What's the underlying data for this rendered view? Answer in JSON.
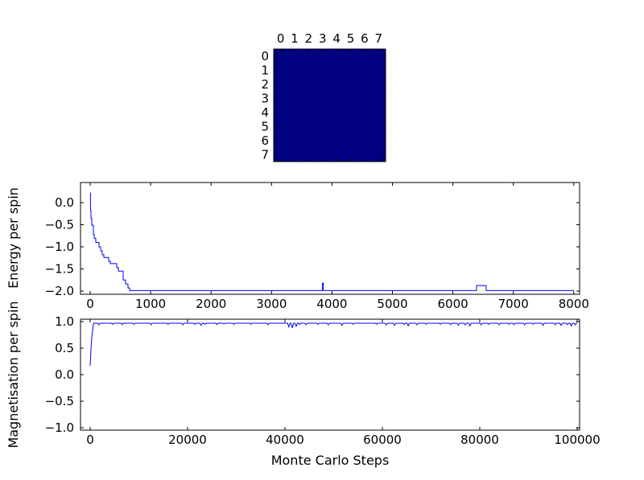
{
  "figure": {
    "background": "#ffffff",
    "description": "Ising model Monte Carlo simulation figure: 8x8 spin lattice heatmap, energy per spin vs steps, magnetisation per spin vs steps"
  },
  "colors": {
    "series_line": "#0000ff",
    "lattice_cell": "#000080",
    "axis": "#000000",
    "text": "#000000"
  },
  "chart_data": [
    {
      "type": "heatmap",
      "name": "spin-lattice",
      "x_tick_labels": [
        "0",
        "1",
        "2",
        "3",
        "4",
        "5",
        "6",
        "7"
      ],
      "y_tick_labels": [
        "0",
        "1",
        "2",
        "3",
        "4",
        "5",
        "6",
        "7"
      ],
      "cell_color": "#000080",
      "values": [
        [
          1,
          1,
          1,
          1,
          1,
          1,
          1,
          1
        ],
        [
          1,
          1,
          1,
          1,
          1,
          1,
          1,
          1
        ],
        [
          1,
          1,
          1,
          1,
          1,
          1,
          1,
          1
        ],
        [
          1,
          1,
          1,
          1,
          1,
          1,
          1,
          1
        ],
        [
          1,
          1,
          1,
          1,
          1,
          1,
          1,
          1
        ],
        [
          1,
          1,
          1,
          1,
          1,
          1,
          1,
          1
        ],
        [
          1,
          1,
          1,
          1,
          1,
          1,
          1,
          1
        ],
        [
          1,
          1,
          1,
          1,
          1,
          1,
          1,
          1
        ]
      ]
    },
    {
      "type": "line",
      "name": "energy-per-spin",
      "title": "",
      "xlabel": "",
      "ylabel": "Energy per spin",
      "x_ticks": [
        0,
        1000,
        2000,
        3000,
        4000,
        5000,
        6000,
        7000,
        8000
      ],
      "x_tick_labels": [
        "0",
        "1000",
        "2000",
        "3000",
        "4000",
        "5000",
        "6000",
        "7000",
        "8000"
      ],
      "y_ticks": [
        0.0,
        -0.5,
        -1.0,
        -1.5,
        -2.0
      ],
      "y_tick_labels": [
        "0.0",
        "−0.5",
        "−1.0",
        "−1.5",
        "−2.0"
      ],
      "xlim": [
        -160,
        8096
      ],
      "ylim": [
        -2.073,
        0.455
      ],
      "grid": false,
      "line_color": "#0000ff",
      "draw_style": "steps-post",
      "step_points": [
        [
          0,
          0.22
        ],
        [
          5,
          -0.18
        ],
        [
          13,
          -0.36
        ],
        [
          26,
          -0.51
        ],
        [
          53,
          -0.72
        ],
        [
          66,
          -0.81
        ],
        [
          93,
          -0.9
        ],
        [
          146,
          -1.0
        ],
        [
          173,
          -1.09
        ],
        [
          200,
          -1.18
        ],
        [
          226,
          -1.24
        ],
        [
          306,
          -1.33
        ],
        [
          333,
          -1.38
        ],
        [
          439,
          -1.47
        ],
        [
          466,
          -1.55
        ],
        [
          546,
          -1.75
        ],
        [
          586,
          -1.84
        ],
        [
          625,
          -1.93
        ],
        [
          652,
          -1.99
        ],
        [
          3840,
          -1.82
        ],
        [
          3858,
          -1.99
        ],
        [
          6390,
          -1.875
        ],
        [
          6550,
          -1.99
        ],
        [
          8000,
          -1.99
        ]
      ]
    },
    {
      "type": "line",
      "name": "magnetisation-per-spin",
      "title": "",
      "xlabel": "Monte Carlo Steps",
      "ylabel": "Magnetisation per spin",
      "x_ticks": [
        0,
        20000,
        40000,
        60000,
        80000,
        100000
      ],
      "x_tick_labels": [
        "0",
        "20000",
        "40000",
        "60000",
        "80000",
        "100000"
      ],
      "y_ticks": [
        1.0,
        0.5,
        0.0,
        -0.5,
        -1.0
      ],
      "y_tick_labels": [
        "1.0",
        "0.5",
        "0.0",
        "−0.5",
        "−1.0"
      ],
      "xlim": [
        -1983,
        100496
      ],
      "ylim": [
        -1.045,
        1.045
      ],
      "grid": false,
      "line_color": "#0000ff",
      "baseline": 0.97,
      "rise_points": [
        [
          0,
          0.17
        ],
        [
          150,
          0.45
        ],
        [
          350,
          0.72
        ],
        [
          700,
          0.97
        ]
      ],
      "dips": [
        [
          1800,
          0.94
        ],
        [
          4600,
          0.95
        ],
        [
          6600,
          0.945
        ],
        [
          9000,
          0.95
        ],
        [
          12500,
          0.94
        ],
        [
          16000,
          0.95
        ],
        [
          19000,
          0.94
        ],
        [
          21500,
          0.95
        ],
        [
          22800,
          0.93
        ],
        [
          23600,
          0.95
        ],
        [
          26000,
          0.945
        ],
        [
          27500,
          0.955
        ],
        [
          29500,
          0.95
        ],
        [
          33000,
          0.95
        ],
        [
          36500,
          0.94
        ],
        [
          40800,
          0.9
        ],
        [
          41500,
          0.88
        ],
        [
          42300,
          0.91
        ],
        [
          43000,
          0.945
        ],
        [
          44300,
          0.94
        ],
        [
          46800,
          0.95
        ],
        [
          48900,
          0.94
        ],
        [
          51700,
          0.93
        ],
        [
          54000,
          0.95
        ],
        [
          58800,
          0.95
        ],
        [
          60800,
          0.94
        ],
        [
          62500,
          0.93
        ],
        [
          64500,
          0.945
        ],
        [
          65300,
          0.92
        ],
        [
          67100,
          0.94
        ],
        [
          69000,
          0.95
        ],
        [
          71900,
          0.95
        ],
        [
          74000,
          0.945
        ],
        [
          75600,
          0.93
        ],
        [
          77000,
          0.94
        ],
        [
          78000,
          0.92
        ],
        [
          80300,
          0.94
        ],
        [
          81800,
          0.95
        ],
        [
          84000,
          0.94
        ],
        [
          86000,
          0.95
        ],
        [
          87000,
          0.945
        ],
        [
          89200,
          0.94
        ],
        [
          91000,
          0.95
        ],
        [
          93000,
          0.93
        ],
        [
          95500,
          0.94
        ],
        [
          96700,
          0.93
        ],
        [
          98000,
          0.945
        ],
        [
          98800,
          0.92
        ],
        [
          99600,
          0.94
        ]
      ],
      "end_x": 100000
    }
  ]
}
